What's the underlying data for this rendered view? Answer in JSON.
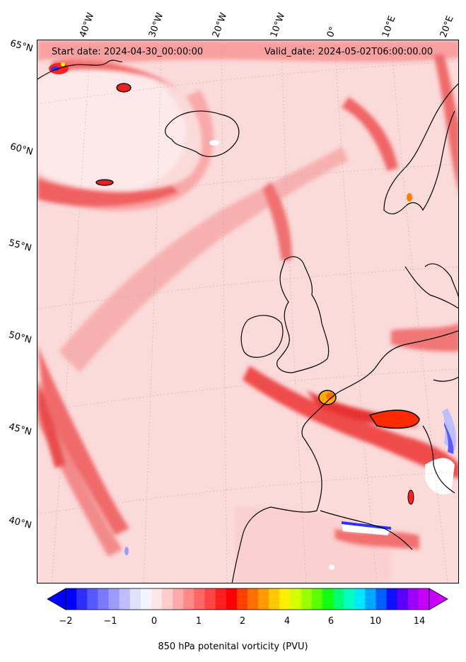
{
  "map": {
    "start_date": "Start date: 2024-04-30_00:00:00",
    "valid_date": "Valid_date: 2024-05-02T06:00:00.00",
    "lon_labels": [
      "40°W",
      "30°W",
      "20°W",
      "10°W",
      "0°",
      "10°E",
      "20°E"
    ],
    "lat_labels": [
      "65°N",
      "60°N",
      "55°N",
      "50°N",
      "45°N",
      "40°N"
    ],
    "projection": "stereographic",
    "lon_range": [
      -45,
      20
    ],
    "lat_range": [
      36,
      66
    ],
    "variable": "850 hPa potential vorticity",
    "coastline_color": "#000000"
  },
  "colorbar": {
    "label": "850 hPa potenital vorticity (PVU)",
    "ticks": [
      "−2",
      "−1",
      "0",
      "1",
      "2",
      "4",
      "6",
      "10",
      "14"
    ],
    "extend": "both",
    "colors": [
      "#0000ff",
      "#2e2eff",
      "#5858ff",
      "#7a7aff",
      "#9c9cff",
      "#bdbdff",
      "#e0e0ff",
      "#f4f4ff",
      "#ffe6e6",
      "#ffcccc",
      "#ffaaaa",
      "#ff8888",
      "#ff6666",
      "#ff4444",
      "#ff1f1f",
      "#ff0000",
      "#ff4000",
      "#ff7000",
      "#ff9a00",
      "#ffc800",
      "#fff000",
      "#d4ff00",
      "#9aff00",
      "#5aff00",
      "#10ff10",
      "#00ff70",
      "#00ffc0",
      "#00e8ff",
      "#00a8ff",
      "#0060ff",
      "#1010ff",
      "#5a00ff",
      "#9c00ff",
      "#c800ff"
    ],
    "under_color": "#0000ff",
    "over_color": "#c800ff"
  }
}
